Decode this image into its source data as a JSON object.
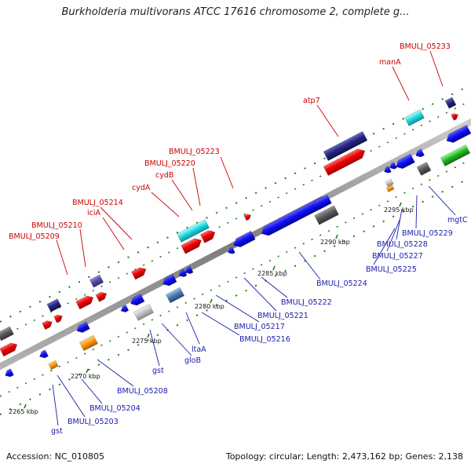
{
  "title": "Burkholderia multivorans ATCC 17616 chromosome 2, complete g...",
  "footer": {
    "accession": "Accession: NC_010805",
    "summary": "Topology: circular; Length: 2,473,162 bp; Genes: 2,138"
  },
  "colors": {
    "label_top": "#cc0000",
    "label_bottom": "#1a1aaa",
    "backbone": "#8a8a8a",
    "tick": "#1e7a1e",
    "forward": "#ee1111",
    "reverse": "#1515dd"
  },
  "ticks": [
    "2265 kbp",
    "2270 kbp",
    "2275 kbp",
    "2280 kbp",
    "2285 kbp",
    "2290 kbp",
    "2295 kbp"
  ],
  "top_labels": [
    "BMULJ_05209",
    "BMULJ_05210",
    "BMULJ_05214",
    "iciA",
    "cydA",
    "cydB",
    "BMULJ_05220",
    "BMULJ_05223",
    "atp7",
    "manA",
    "BMULJ_05233"
  ],
  "bottom_labels": [
    "gst",
    "BMULJ_05203",
    "BMULJ_05204",
    "BMULJ_05208",
    "gst",
    "gloB",
    "ltaA",
    "BMULJ_05216",
    "BMULJ_05217",
    "BMULJ_05221",
    "BMULJ_05222",
    "BMULJ_05224",
    "BMULJ_05225",
    "BMULJ_05227",
    "BMULJ_05228",
    "BMULJ_05229",
    "mgtC"
  ]
}
